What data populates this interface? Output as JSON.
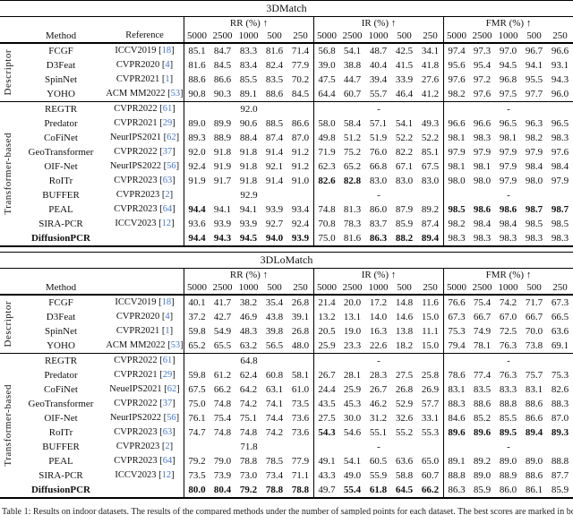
{
  "caption": {
    "text": "Table 1: Results on indoor datasets. The results of the compared methods under the number of sampled points for each dataset. The best scores are marked in bold."
  },
  "colors": {
    "citation": "#4477cc",
    "text": "#111111",
    "rule": "#000000"
  },
  "tables": [
    {
      "title": "3DMatch",
      "header": {
        "method": "Method",
        "reference": "Reference",
        "groups": [
          "RR (%) ↑",
          "IR (%) ↑",
          "FMR (%) ↑"
        ],
        "samples": [
          "5000",
          "2500",
          "1000",
          "500",
          "250"
        ]
      },
      "sections": [
        {
          "label": "Descriptor",
          "rows": [
            {
              "method": "FCGF",
              "venue": "ICCV2019",
              "cite": "18",
              "rr": [
                "85.1",
                "84.7",
                "83.3",
                "81.6",
                "71.4"
              ],
              "ir": [
                "56.8",
                "54.1",
                "48.7",
                "42.5",
                "34.1"
              ],
              "fmr": [
                "97.4",
                "97.3",
                "97.0",
                "96.7",
                "96.6"
              ]
            },
            {
              "method": "D3Feat",
              "venue": "CVPR2020",
              "cite": "4",
              "rr": [
                "81.6",
                "84.5",
                "83.4",
                "82.4",
                "77.9"
              ],
              "ir": [
                "39.0",
                "38.8",
                "40.4",
                "41.5",
                "41.8"
              ],
              "fmr": [
                "95.6",
                "95.4",
                "94.5",
                "94.1",
                "93.1"
              ]
            },
            {
              "method": "SpinNet",
              "venue": "CVPR2021",
              "cite": "1",
              "rr": [
                "88.6",
                "86.6",
                "85.5",
                "83.5",
                "70.2"
              ],
              "ir": [
                "47.5",
                "44.7",
                "39.4",
                "33.9",
                "27.6"
              ],
              "fmr": [
                "97.6",
                "97.2",
                "96.8",
                "95.5",
                "94.3"
              ]
            },
            {
              "method": "YOHO",
              "venue": "ACM MM2022",
              "cite": "53",
              "rr": [
                "90.8",
                "90.3",
                "89.1",
                "88.6",
                "84.5"
              ],
              "ir": [
                "64.4",
                "60.7",
                "55.7",
                "46.4",
                "41.2"
              ],
              "fmr": [
                "98.2",
                "97.6",
                "97.5",
                "97.7",
                "96.0"
              ]
            }
          ]
        },
        {
          "label": "Transformer-based",
          "rows": [
            {
              "method": "REGTR",
              "venue": "CVPR2022",
              "cite": "61",
              "single": {
                "rr": "92.0",
                "ir": "-",
                "fmr": "-"
              }
            },
            {
              "method": "Predator",
              "venue": "CVPR2021",
              "cite": "29",
              "rr": [
                "89.0",
                "89.9",
                "90.6",
                "88.5",
                "86.6"
              ],
              "ir": [
                "58.0",
                "58.4",
                "57.1",
                "54.1",
                "49.3"
              ],
              "fmr": [
                "96.6",
                "96.6",
                "96.5",
                "96.3",
                "96.5"
              ]
            },
            {
              "method": "CoFiNet",
              "venue": "NeurIPS2021",
              "cite": "62",
              "rr": [
                "89.3",
                "88.9",
                "88.4",
                "87.4",
                "87.0"
              ],
              "ir": [
                "49.8",
                "51.2",
                "51.9",
                "52.2",
                "52.2"
              ],
              "fmr": [
                "98.1",
                "98.3",
                "98.1",
                "98.2",
                "98.3"
              ]
            },
            {
              "method": "GeoTransformer",
              "venue": "CVPR2022",
              "cite": "37",
              "rr": [
                "92.0",
                "91.8",
                "91.8",
                "91.4",
                "91.2"
              ],
              "ir": [
                "71.9",
                "75.2",
                "76.0",
                "82.2",
                "85.1"
              ],
              "fmr": [
                "97.9",
                "97.9",
                "97.9",
                "97.9",
                "97.6"
              ]
            },
            {
              "method": "OIF-Net",
              "venue": "NeurIPS2022",
              "cite": "56",
              "rr": [
                "92.4",
                "91.9",
                "91.8",
                "92.1",
                "91.2"
              ],
              "ir": [
                "62.3",
                "65.2",
                "66.8",
                "67.1",
                "67.5"
              ],
              "fmr": [
                "98.1",
                "98.1",
                "97.9",
                "98.4",
                "98.4"
              ]
            },
            {
              "method": "RoITr",
              "venue": "CVPR2023",
              "cite": "63",
              "rr": [
                "91.9",
                "91.7",
                "91.8",
                "91.4",
                "91.0"
              ],
              "ir": [
                "82.6",
                "82.8",
                "83.0",
                "83.0",
                "83.0"
              ],
              "ir_bold": [
                0,
                1
              ],
              "fmr": [
                "98.0",
                "98.0",
                "97.9",
                "98.0",
                "97.9"
              ]
            },
            {
              "method": "BUFFER",
              "venue": "CVPR2023",
              "cite": "2",
              "single": {
                "rr": "92.9",
                "ir": "-",
                "fmr": "-"
              }
            },
            {
              "method": "PEAL",
              "venue": "CVPR2023",
              "cite": "64",
              "rr": [
                "94.4",
                "94.1",
                "94.1",
                "93.9",
                "93.4"
              ],
              "rr_bold": [
                0
              ],
              "ir": [
                "74.8",
                "81.3",
                "86.0",
                "87.9",
                "89.2"
              ],
              "fmr": [
                "98.5",
                "98.6",
                "98.6",
                "98.7",
                "98.7"
              ],
              "fmr_bold": [
                0,
                1,
                2,
                3,
                4
              ]
            },
            {
              "method": "SIRA-PCR",
              "venue": "ICCV2023",
              "cite": "12",
              "rr": [
                "93.6",
                "93.9",
                "93.9",
                "92.7",
                "92.4"
              ],
              "ir": [
                "70.8",
                "78.3",
                "83.7",
                "85.9",
                "87.4"
              ],
              "fmr": [
                "98.2",
                "98.4",
                "98.4",
                "98.5",
                "98.5"
              ]
            },
            {
              "method": "DiffusionPCR",
              "venue": "",
              "cite": "",
              "method_bold": true,
              "rr": [
                "94.4",
                "94.3",
                "94.5",
                "94.0",
                "93.9"
              ],
              "rr_bold": [
                0,
                1,
                2,
                3,
                4
              ],
              "ir": [
                "75.0",
                "81.6",
                "86.3",
                "88.2",
                "89.4"
              ],
              "ir_bold": [
                2,
                3,
                4
              ],
              "fmr": [
                "98.3",
                "98.3",
                "98.3",
                "98.3",
                "98.3"
              ]
            }
          ]
        }
      ]
    },
    {
      "title": "3DLoMatch",
      "header": {
        "method": "Method",
        "reference": "",
        "groups": [
          "RR (%) ↑",
          "IR (%) ↑",
          "FMR (%) ↑"
        ],
        "samples": [
          "5000",
          "2500",
          "1000",
          "500",
          "250"
        ]
      },
      "sections": [
        {
          "label": "Descriptor",
          "rows": [
            {
              "method": "FCGF",
              "venue": "ICCV2019",
              "cite": "18",
              "rr": [
                "40.1",
                "41.7",
                "38.2",
                "35.4",
                "26.8"
              ],
              "ir": [
                "21.4",
                "20.0",
                "17.2",
                "14.8",
                "11.6"
              ],
              "fmr": [
                "76.6",
                "75.4",
                "74.2",
                "71.7",
                "67.3"
              ]
            },
            {
              "method": "D3Feat",
              "venue": "CVPR2020",
              "cite": "4",
              "rr": [
                "37.2",
                "42.7",
                "46.9",
                "43.8",
                "39.1"
              ],
              "ir": [
                "13.2",
                "13.1",
                "14.0",
                "14.6",
                "15.0"
              ],
              "fmr": [
                "67.3",
                "66.7",
                "67.0",
                "66.7",
                "66.5"
              ]
            },
            {
              "method": "SpinNet",
              "venue": "CVPR2021",
              "cite": "1",
              "rr": [
                "59.8",
                "54.9",
                "48.3",
                "39.8",
                "26.8"
              ],
              "ir": [
                "20.5",
                "19.0",
                "16.3",
                "13.8",
                "11.1"
              ],
              "fmr": [
                "75.3",
                "74.9",
                "72.5",
                "70.0",
                "63.6"
              ]
            },
            {
              "method": "YOHO",
              "venue": "ACM MM2022",
              "cite": "53",
              "rr": [
                "65.2",
                "65.5",
                "63.2",
                "56.5",
                "48.0"
              ],
              "ir": [
                "25.9",
                "23.3",
                "22.6",
                "18.2",
                "15.0"
              ],
              "fmr": [
                "79.4",
                "78.1",
                "76.3",
                "73.8",
                "69.1"
              ]
            }
          ]
        },
        {
          "label": "Transformer-based",
          "rows": [
            {
              "method": "REGTR",
              "venue": "CVPR2022",
              "cite": "61",
              "single": {
                "rr": "64.8",
                "ir": "-",
                "fmr": "-"
              }
            },
            {
              "method": "Predator",
              "venue": "CVPR2021",
              "cite": "29",
              "rr": [
                "59.8",
                "61.2",
                "62.4",
                "60.8",
                "58.1"
              ],
              "ir": [
                "26.7",
                "28.1",
                "28.3",
                "27.5",
                "25.8"
              ],
              "fmr": [
                "78.6",
                "77.4",
                "76.3",
                "75.7",
                "75.3"
              ]
            },
            {
              "method": "CoFiNet",
              "venue": "NeueIPS2021",
              "cite": "62",
              "rr": [
                "67.5",
                "66.2",
                "64.2",
                "63.1",
                "61.0"
              ],
              "ir": [
                "24.4",
                "25.9",
                "26.7",
                "26.8",
                "26.9"
              ],
              "fmr": [
                "83.1",
                "83.5",
                "83.3",
                "83.1",
                "82.6"
              ]
            },
            {
              "method": "GeoTransformer",
              "venue": "CVPR2022",
              "cite": "37",
              "rr": [
                "75.0",
                "74.8",
                "74.2",
                "74.1",
                "73.5"
              ],
              "ir": [
                "43.5",
                "45.3",
                "46.2",
                "52.9",
                "57.7"
              ],
              "fmr": [
                "88.3",
                "88.6",
                "88.8",
                "88.6",
                "88.3"
              ]
            },
            {
              "method": "OIF-Net",
              "venue": "NeurIPS2022",
              "cite": "56",
              "rr": [
                "76.1",
                "75.4",
                "75.1",
                "74.4",
                "73.6"
              ],
              "ir": [
                "27.5",
                "30.0",
                "31.2",
                "32.6",
                "33.1"
              ],
              "fmr": [
                "84.6",
                "85.2",
                "85.5",
                "86.6",
                "87.0"
              ]
            },
            {
              "method": "RoITr",
              "venue": "CVPR2023",
              "cite": "63",
              "rr": [
                "74.7",
                "74.8",
                "74.8",
                "74.2",
                "73.6"
              ],
              "ir": [
                "54.3",
                "54.6",
                "55.1",
                "55.2",
                "55.3"
              ],
              "ir_bold": [
                0
              ],
              "fmr": [
                "89.6",
                "89.6",
                "89.5",
                "89.4",
                "89.3"
              ],
              "fmr_bold": [
                0,
                1,
                2,
                3,
                4
              ]
            },
            {
              "method": "BUFFER",
              "venue": "CVPR2023",
              "cite": "2",
              "single": {
                "rr": "71.8",
                "ir": "-",
                "fmr": "-"
              }
            },
            {
              "method": "PEAL",
              "venue": "CVPR2023",
              "cite": "64",
              "rr": [
                "79.2",
                "79.0",
                "78.8",
                "78.5",
                "77.9"
              ],
              "ir": [
                "49.1",
                "54.1",
                "60.5",
                "63.6",
                "65.0"
              ],
              "fmr": [
                "89.1",
                "89.2",
                "89.0",
                "89.0",
                "88.8"
              ]
            },
            {
              "method": "SIRA-PCR",
              "venue": "ICCV2023",
              "cite": "12",
              "rr": [
                "73.5",
                "73.9",
                "73.0",
                "73.4",
                "71.1"
              ],
              "ir": [
                "43.3",
                "49.0",
                "55.9",
                "58.8",
                "60.7"
              ],
              "fmr": [
                "88.8",
                "89.0",
                "88.9",
                "88.6",
                "87.7"
              ]
            },
            {
              "method": "DiffusionPCR",
              "venue": "",
              "cite": "",
              "method_bold": true,
              "rr": [
                "80.0",
                "80.4",
                "79.2",
                "78.8",
                "78.8"
              ],
              "rr_bold": [
                0,
                1,
                2,
                3,
                4
              ],
              "ir": [
                "49.7",
                "55.4",
                "61.8",
                "64.5",
                "66.2"
              ],
              "ir_bold": [
                1,
                2,
                3,
                4
              ],
              "fmr": [
                "86.3",
                "85.9",
                "86.0",
                "86.1",
                "85.9"
              ]
            }
          ]
        }
      ]
    }
  ]
}
